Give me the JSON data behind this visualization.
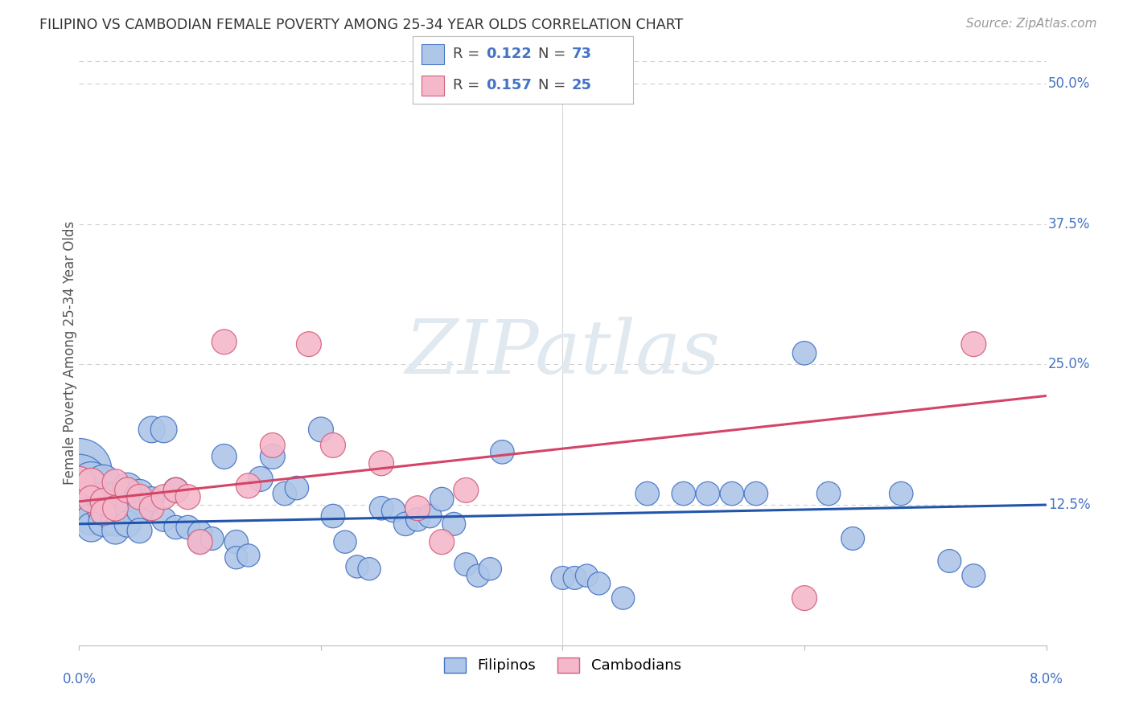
{
  "title": "FILIPINO VS CAMBODIAN FEMALE POVERTY AMONG 25-34 YEAR OLDS CORRELATION CHART",
  "source": "Source: ZipAtlas.com",
  "ylabel": "Female Poverty Among 25-34 Year Olds",
  "xlim": [
    0.0,
    0.08
  ],
  "ylim": [
    0.0,
    0.52
  ],
  "ytick_vals": [
    0.125,
    0.25,
    0.375,
    0.5
  ],
  "ytick_labels": [
    "12.5%",
    "25.0%",
    "37.5%",
    "50.0%"
  ],
  "bg_color": "#ffffff",
  "grid_color": "#d0d0d0",
  "watermark_text": "ZIPatlas",
  "watermark_color": "#e0e8f0",
  "filipino_color": "#aec6e8",
  "cambodian_color": "#f5b8cb",
  "filipino_edge": "#4472c4",
  "cambodian_edge": "#d45f7a",
  "trend_filipino_color": "#2255aa",
  "trend_cambodian_color": "#d44466",
  "filipino_x": [
    0.0,
    0.0,
    0.0,
    0.0,
    0.001,
    0.001,
    0.001,
    0.001,
    0.001,
    0.002,
    0.002,
    0.002,
    0.002,
    0.003,
    0.003,
    0.003,
    0.003,
    0.004,
    0.004,
    0.004,
    0.005,
    0.005,
    0.005,
    0.006,
    0.006,
    0.007,
    0.007,
    0.008,
    0.008,
    0.009,
    0.01,
    0.01,
    0.011,
    0.012,
    0.013,
    0.013,
    0.014,
    0.015,
    0.016,
    0.017,
    0.018,
    0.02,
    0.021,
    0.022,
    0.023,
    0.024,
    0.025,
    0.026,
    0.027,
    0.028,
    0.029,
    0.03,
    0.031,
    0.032,
    0.033,
    0.034,
    0.035,
    0.04,
    0.041,
    0.042,
    0.043,
    0.045,
    0.047,
    0.05,
    0.052,
    0.054,
    0.056,
    0.06,
    0.062,
    0.064,
    0.068,
    0.072,
    0.074
  ],
  "filipino_y": [
    0.155,
    0.145,
    0.135,
    0.125,
    0.145,
    0.13,
    0.12,
    0.112,
    0.105,
    0.145,
    0.13,
    0.12,
    0.11,
    0.13,
    0.12,
    0.11,
    0.102,
    0.14,
    0.125,
    0.108,
    0.135,
    0.12,
    0.102,
    0.192,
    0.13,
    0.192,
    0.112,
    0.138,
    0.105,
    0.105,
    0.1,
    0.092,
    0.095,
    0.168,
    0.092,
    0.078,
    0.08,
    0.148,
    0.168,
    0.135,
    0.14,
    0.192,
    0.115,
    0.092,
    0.07,
    0.068,
    0.122,
    0.12,
    0.108,
    0.112,
    0.115,
    0.13,
    0.108,
    0.072,
    0.062,
    0.068,
    0.172,
    0.06,
    0.06,
    0.062,
    0.055,
    0.042,
    0.135,
    0.135,
    0.135,
    0.135,
    0.135,
    0.26,
    0.135,
    0.095,
    0.135,
    0.075,
    0.062
  ],
  "filipino_size": [
    380,
    280,
    200,
    150,
    150,
    120,
    100,
    85,
    75,
    110,
    100,
    88,
    78,
    95,
    85,
    75,
    65,
    82,
    72,
    62,
    72,
    62,
    55,
    62,
    55,
    62,
    52,
    58,
    50,
    50,
    52,
    50,
    48,
    55,
    50,
    46,
    46,
    55,
    55,
    50,
    50,
    55,
    50,
    46,
    46,
    46,
    50,
    50,
    50,
    50,
    50,
    50,
    48,
    48,
    46,
    46,
    50,
    48,
    48,
    46,
    46,
    46,
    50,
    50,
    50,
    50,
    50,
    50,
    50,
    48,
    50,
    48,
    48
  ],
  "cambodian_x": [
    0.0,
    0.001,
    0.001,
    0.002,
    0.002,
    0.003,
    0.003,
    0.004,
    0.005,
    0.006,
    0.007,
    0.008,
    0.009,
    0.01,
    0.012,
    0.014,
    0.016,
    0.019,
    0.021,
    0.025,
    0.028,
    0.03,
    0.032,
    0.06,
    0.074
  ],
  "cambodian_y": [
    0.145,
    0.145,
    0.13,
    0.128,
    0.118,
    0.145,
    0.122,
    0.138,
    0.132,
    0.122,
    0.132,
    0.138,
    0.132,
    0.092,
    0.27,
    0.142,
    0.178,
    0.268,
    0.178,
    0.162,
    0.122,
    0.092,
    0.138,
    0.042,
    0.268
  ],
  "cambodian_size": [
    90,
    72,
    65,
    62,
    58,
    62,
    58,
    58,
    58,
    55,
    55,
    55,
    55,
    55,
    55,
    55,
    55,
    55,
    55,
    55,
    55,
    55,
    55,
    55,
    55
  ],
  "trend_fil_x0": 0.0,
  "trend_fil_y0": 0.108,
  "trend_fil_x1": 0.08,
  "trend_fil_y1": 0.125,
  "trend_cam_x0": 0.0,
  "trend_cam_y0": 0.128,
  "trend_cam_x1": 0.08,
  "trend_cam_y1": 0.222
}
